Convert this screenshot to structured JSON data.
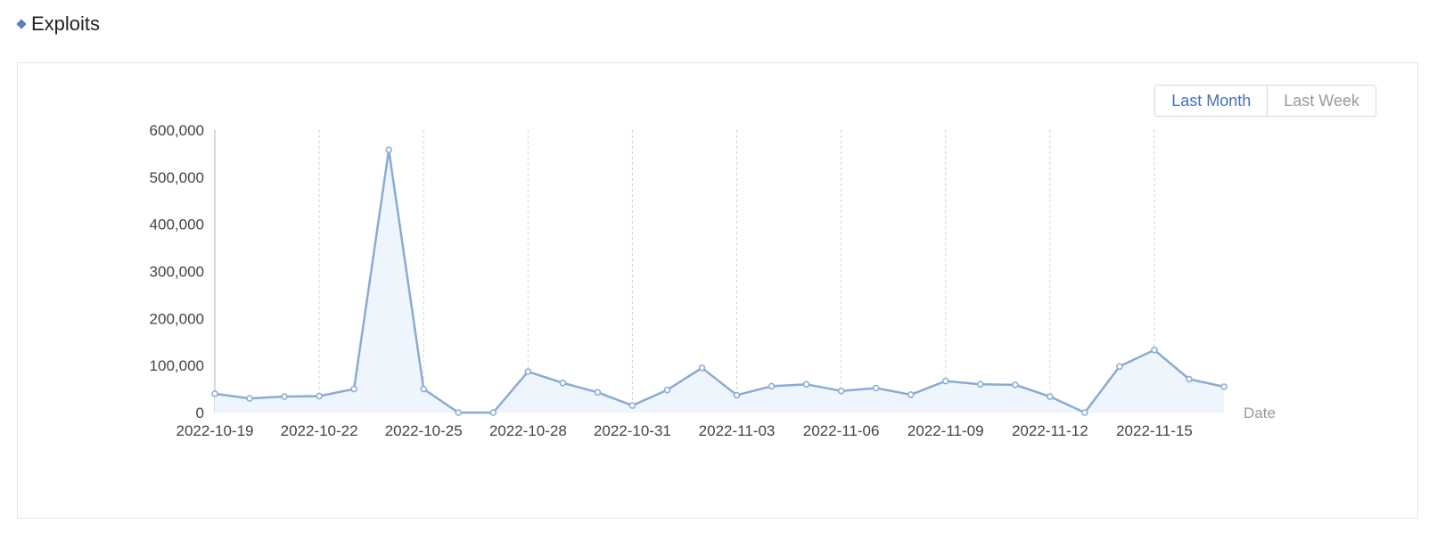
{
  "header": {
    "title": "Exploits",
    "icon": "diamond-icon"
  },
  "range_toggle": {
    "options": [
      "Last Month",
      "Last Week"
    ],
    "active": "Last Month"
  },
  "colors": {
    "line": "#8aabd3",
    "area": "#eef5fd",
    "accent": "#5b7fbf",
    "grid": "#d0d0d0"
  },
  "chart_data": {
    "type": "area",
    "xlabel": "Date",
    "ylabel": "",
    "ylim": [
      0,
      600000
    ],
    "yticks": [
      0,
      100000,
      200000,
      300000,
      400000,
      500000,
      600000
    ],
    "ytick_labels": [
      "0",
      "100,000",
      "200,000",
      "300,000",
      "400,000",
      "500,000",
      "600,000"
    ],
    "xtick_labels": [
      "2022-10-19",
      "2022-10-22",
      "2022-10-25",
      "2022-10-28",
      "2022-10-31",
      "2022-11-03",
      "2022-11-06",
      "2022-11-09",
      "2022-11-12",
      "2022-11-15"
    ],
    "grid": "vertical dashed",
    "x": [
      "2022-10-19",
      "2022-10-20",
      "2022-10-21",
      "2022-10-22",
      "2022-10-23",
      "2022-10-24",
      "2022-10-25",
      "2022-10-26",
      "2022-10-27",
      "2022-10-28",
      "2022-10-29",
      "2022-10-30",
      "2022-10-31",
      "2022-11-01",
      "2022-11-02",
      "2022-11-03",
      "2022-11-04",
      "2022-11-05",
      "2022-11-06",
      "2022-11-07",
      "2022-11-08",
      "2022-11-09",
      "2022-11-10",
      "2022-11-11",
      "2022-11-12",
      "2022-11-13",
      "2022-11-14",
      "2022-11-15",
      "2022-11-16",
      "2022-11-17"
    ],
    "series": [
      {
        "values": [
          40000,
          30000,
          34000,
          35000,
          50000,
          558000,
          50000,
          0,
          0,
          87000,
          63000,
          43000,
          15000,
          48000,
          95000,
          37000,
          56000,
          60000,
          46000,
          52000,
          38000,
          67000,
          60000,
          59000,
          34000,
          0,
          98000,
          133000,
          71000,
          55000
        ]
      }
    ]
  }
}
